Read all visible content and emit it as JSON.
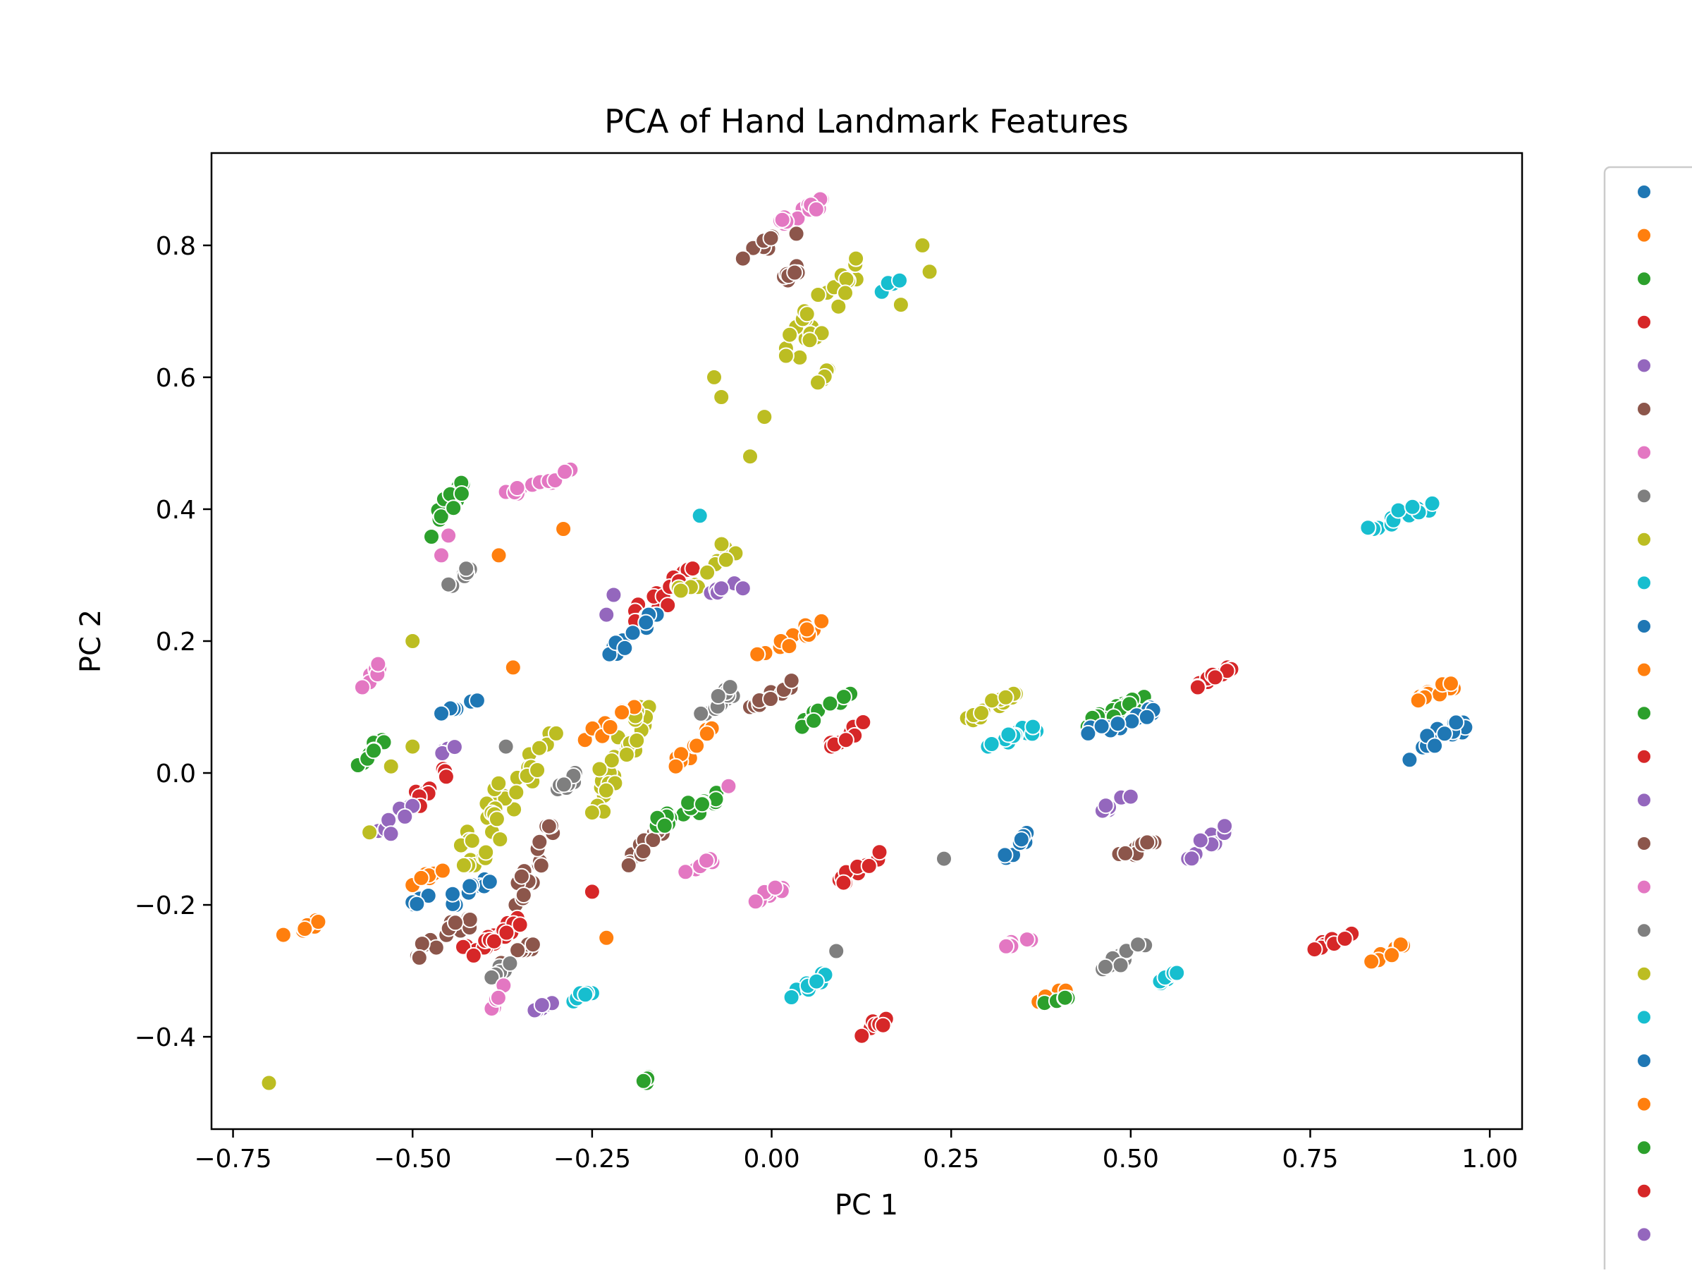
{
  "chart_data": {
    "type": "scatter",
    "title": "PCA of Hand Landmark Features",
    "xlabel": "PC 1",
    "ylabel": "PC 2",
    "xlim": [
      -0.78,
      1.045
    ],
    "ylim": [
      -0.54,
      0.94
    ],
    "xticks": [
      -0.75,
      -0.5,
      -0.25,
      0.0,
      0.25,
      0.5,
      0.75,
      1.0
    ],
    "xtick_labels": [
      "−0.75",
      "−0.50",
      "−0.25",
      "0.00",
      "0.25",
      "0.50",
      "0.75",
      "1.00"
    ],
    "yticks": [
      -0.4,
      -0.2,
      0.0,
      0.2,
      0.4,
      0.6,
      0.8
    ],
    "ytick_labels": [
      "−0.4",
      "−0.2",
      "0.0",
      "0.2",
      "0.4",
      "0.6",
      "0.8"
    ],
    "grid": false,
    "legend_placement": "right, outside plot (cut off)",
    "legend_colors": [
      "#1f77b4",
      "#ff7f0e",
      "#2ca02c",
      "#d62728",
      "#9467bd",
      "#8c564b",
      "#e377c2",
      "#7f7f7f",
      "#bcbd22",
      "#17becf",
      "#1f77b4",
      "#ff7f0e",
      "#2ca02c",
      "#d62728",
      "#9467bd",
      "#8c564b",
      "#e377c2",
      "#7f7f7f",
      "#bcbd22",
      "#17becf",
      "#1f77b4",
      "#ff7f0e",
      "#2ca02c",
      "#d62728",
      "#9467bd"
    ],
    "clusters": [
      {
        "color": "#e377c2",
        "x": [
          0.0,
          0.07
        ],
        "y": [
          0.82,
          0.87
        ],
        "n": 16
      },
      {
        "color": "#8c564b",
        "x": [
          -0.04,
          0.04
        ],
        "y": [
          0.78,
          0.83
        ],
        "n": 8
      },
      {
        "color": "#8c564b",
        "x": [
          -0.01,
          0.04
        ],
        "y": [
          0.73,
          0.77
        ],
        "n": 7
      },
      {
        "color": "#bcbd22",
        "x": [
          0.02,
          0.13
        ],
        "y": [
          0.63,
          0.78
        ],
        "n": 30
      },
      {
        "color": "#bcbd22",
        "x": [
          0.04,
          0.09
        ],
        "y": [
          0.57,
          0.62
        ],
        "n": 5
      },
      {
        "color": "#17becf",
        "x": [
          0.14,
          0.18
        ],
        "y": [
          0.72,
          0.75
        ],
        "n": 4
      },
      {
        "color": "#2ca02c",
        "x": [
          -0.48,
          -0.43
        ],
        "y": [
          0.35,
          0.44
        ],
        "n": 16
      },
      {
        "color": "#e377c2",
        "x": [
          -0.37,
          -0.28
        ],
        "y": [
          0.42,
          0.46
        ],
        "n": 14
      },
      {
        "color": "#7f7f7f",
        "x": [
          -0.45,
          -0.42
        ],
        "y": [
          0.28,
          0.31
        ],
        "n": 7
      },
      {
        "color": "#d62728",
        "x": [
          -0.19,
          -0.11
        ],
        "y": [
          0.23,
          0.31
        ],
        "n": 22
      },
      {
        "color": "#bcbd22",
        "x": [
          -0.13,
          -0.05
        ],
        "y": [
          0.26,
          0.35
        ],
        "n": 12
      },
      {
        "color": "#9467bd",
        "x": [
          -0.1,
          -0.05
        ],
        "y": [
          0.26,
          0.29
        ],
        "n": 5
      },
      {
        "color": "#1f77b4",
        "x": [
          -0.23,
          -0.16
        ],
        "y": [
          0.18,
          0.24
        ],
        "n": 12
      },
      {
        "color": "#ff7f0e",
        "x": [
          -0.02,
          0.07
        ],
        "y": [
          0.18,
          0.23
        ],
        "n": 14
      },
      {
        "color": "#e377c2",
        "x": [
          -0.57,
          -0.54
        ],
        "y": [
          0.13,
          0.17
        ],
        "n": 8
      },
      {
        "color": "#2ca02c",
        "x": [
          -0.58,
          -0.54
        ],
        "y": [
          0.01,
          0.05
        ],
        "n": 10
      },
      {
        "color": "#1f77b4",
        "x": [
          -0.46,
          -0.41
        ],
        "y": [
          0.09,
          0.11
        ],
        "n": 6
      },
      {
        "color": "#bcbd22",
        "x": [
          -0.25,
          -0.17
        ],
        "y": [
          -0.06,
          0.1
        ],
        "n": 34
      },
      {
        "color": "#ff7f0e",
        "x": [
          -0.26,
          -0.19
        ],
        "y": [
          0.05,
          0.1
        ],
        "n": 8
      },
      {
        "color": "#ff7f0e",
        "x": [
          -0.14,
          -0.08
        ],
        "y": [
          0.01,
          0.07
        ],
        "n": 10
      },
      {
        "color": "#7f7f7f",
        "x": [
          -0.1,
          -0.04
        ],
        "y": [
          0.09,
          0.14
        ],
        "n": 12
      },
      {
        "color": "#8c564b",
        "x": [
          -0.03,
          0.04
        ],
        "y": [
          0.1,
          0.14
        ],
        "n": 12
      },
      {
        "color": "#2ca02c",
        "x": [
          0.04,
          0.11
        ],
        "y": [
          0.07,
          0.12
        ],
        "n": 12
      },
      {
        "color": "#d62728",
        "x": [
          0.08,
          0.14
        ],
        "y": [
          0.04,
          0.08
        ],
        "n": 10
      },
      {
        "color": "#bcbd22",
        "x": [
          0.27,
          0.34
        ],
        "y": [
          0.08,
          0.12
        ],
        "n": 14
      },
      {
        "color": "#17becf",
        "x": [
          0.3,
          0.37
        ],
        "y": [
          0.04,
          0.07
        ],
        "n": 14
      },
      {
        "color": "#2ca02c",
        "x": [
          0.44,
          0.52
        ],
        "y": [
          0.07,
          0.12
        ],
        "n": 18
      },
      {
        "color": "#1f77b4",
        "x": [
          0.44,
          0.54
        ],
        "y": [
          0.06,
          0.1
        ],
        "n": 18
      },
      {
        "color": "#d62728",
        "x": [
          0.59,
          0.64
        ],
        "y": [
          0.13,
          0.16
        ],
        "n": 12
      },
      {
        "color": "#17becf",
        "x": [
          0.83,
          0.92
        ],
        "y": [
          0.37,
          0.41
        ],
        "n": 16
      },
      {
        "color": "#ff7f0e",
        "x": [
          0.9,
          0.96
        ],
        "y": [
          0.11,
          0.14
        ],
        "n": 12
      },
      {
        "color": "#1f77b4",
        "x": [
          0.88,
          0.97
        ],
        "y": [
          0.02,
          0.08
        ],
        "n": 16
      },
      {
        "color": "#9467bd",
        "x": [
          -0.46,
          -0.43
        ],
        "y": [
          0.03,
          0.05
        ],
        "n": 5
      },
      {
        "color": "#d62728",
        "x": [
          -0.5,
          -0.45
        ],
        "y": [
          -0.05,
          0.01
        ],
        "n": 10
      },
      {
        "color": "#9467bd",
        "x": [
          -0.55,
          -0.5
        ],
        "y": [
          -0.1,
          -0.05
        ],
        "n": 10
      },
      {
        "color": "#bcbd22",
        "x": [
          -0.44,
          -0.3
        ],
        "y": [
          -0.14,
          0.06
        ],
        "n": 38
      },
      {
        "color": "#7f7f7f",
        "x": [
          -0.31,
          -0.27
        ],
        "y": [
          -0.04,
          0.0
        ],
        "n": 8
      },
      {
        "color": "#ff7f0e",
        "x": [
          -0.5,
          -0.45
        ],
        "y": [
          -0.17,
          -0.14
        ],
        "n": 7
      },
      {
        "color": "#8c564b",
        "x": [
          -0.36,
          -0.3
        ],
        "y": [
          -0.2,
          -0.08
        ],
        "n": 18
      },
      {
        "color": "#1f77b4",
        "x": [
          -0.5,
          -0.47
        ],
        "y": [
          -0.2,
          -0.18
        ],
        "n": 6
      },
      {
        "color": "#1f77b4",
        "x": [
          -0.45,
          -0.39
        ],
        "y": [
          -0.2,
          -0.15
        ],
        "n": 10
      },
      {
        "color": "#8c564b",
        "x": [
          -0.5,
          -0.42
        ],
        "y": [
          -0.28,
          -0.22
        ],
        "n": 22
      },
      {
        "color": "#d62728",
        "x": [
          -0.43,
          -0.35
        ],
        "y": [
          -0.28,
          -0.22
        ],
        "n": 22
      },
      {
        "color": "#8c564b",
        "x": [
          -0.38,
          -0.33
        ],
        "y": [
          -0.29,
          -0.26
        ],
        "n": 8
      },
      {
        "color": "#7f7f7f",
        "x": [
          -0.39,
          -0.35
        ],
        "y": [
          -0.31,
          -0.28
        ],
        "n": 6
      },
      {
        "color": "#e377c2",
        "x": [
          -0.39,
          -0.37
        ],
        "y": [
          -0.36,
          -0.32
        ],
        "n": 6
      },
      {
        "color": "#9467bd",
        "x": [
          -0.33,
          -0.29
        ],
        "y": [
          -0.36,
          -0.34
        ],
        "n": 6
      },
      {
        "color": "#17becf",
        "x": [
          -0.29,
          -0.25
        ],
        "y": [
          -0.35,
          -0.33
        ],
        "n": 6
      },
      {
        "color": "#ff7f0e",
        "x": [
          -0.68,
          -0.62
        ],
        "y": [
          -0.25,
          -0.22
        ],
        "n": 10
      },
      {
        "color": "#8c564b",
        "x": [
          -0.2,
          -0.15
        ],
        "y": [
          -0.14,
          -0.08
        ],
        "n": 18
      },
      {
        "color": "#2ca02c",
        "x": [
          -0.16,
          -0.07
        ],
        "y": [
          -0.08,
          -0.03
        ],
        "n": 20
      },
      {
        "color": "#e377c2",
        "x": [
          -0.12,
          -0.08
        ],
        "y": [
          -0.15,
          -0.13
        ],
        "n": 6
      },
      {
        "color": "#e377c2",
        "x": [
          -0.04,
          0.02
        ],
        "y": [
          -0.2,
          -0.17
        ],
        "n": 10
      },
      {
        "color": "#d62728",
        "x": [
          0.09,
          0.16
        ],
        "y": [
          -0.17,
          -0.12
        ],
        "n": 14
      },
      {
        "color": "#1f77b4",
        "x": [
          0.32,
          0.36
        ],
        "y": [
          -0.13,
          -0.09
        ],
        "n": 8
      },
      {
        "color": "#9467bd",
        "x": [
          0.46,
          0.5
        ],
        "y": [
          -0.06,
          -0.03
        ],
        "n": 8
      },
      {
        "color": "#8c564b",
        "x": [
          0.48,
          0.54
        ],
        "y": [
          -0.13,
          -0.1
        ],
        "n": 10
      },
      {
        "color": "#9467bd",
        "x": [
          0.58,
          0.64
        ],
        "y": [
          -0.13,
          -0.08
        ],
        "n": 12
      },
      {
        "color": "#e377c2",
        "x": [
          0.32,
          0.37
        ],
        "y": [
          -0.27,
          -0.24
        ],
        "n": 6
      },
      {
        "color": "#7f7f7f",
        "x": [
          0.46,
          0.52
        ],
        "y": [
          -0.3,
          -0.26
        ],
        "n": 12
      },
      {
        "color": "#17becf",
        "x": [
          0.53,
          0.57
        ],
        "y": [
          -0.32,
          -0.3
        ],
        "n": 8
      },
      {
        "color": "#17becf",
        "x": [
          0.02,
          0.08
        ],
        "y": [
          -0.34,
          -0.3
        ],
        "n": 10
      },
      {
        "color": "#ff7f0e",
        "x": [
          0.37,
          0.41
        ],
        "y": [
          -0.35,
          -0.33
        ],
        "n": 8
      },
      {
        "color": "#2ca02c",
        "x": [
          0.38,
          0.42
        ],
        "y": [
          -0.35,
          -0.34
        ],
        "n": 6
      },
      {
        "color": "#d62728",
        "x": [
          0.12,
          0.16
        ],
        "y": [
          -0.4,
          -0.37
        ],
        "n": 8
      },
      {
        "color": "#2ca02c",
        "x": [
          -0.18,
          -0.15
        ],
        "y": [
          -0.47,
          -0.45
        ],
        "n": 5
      },
      {
        "color": "#d62728",
        "x": [
          0.75,
          0.81
        ],
        "y": [
          -0.27,
          -0.24
        ],
        "n": 8
      },
      {
        "color": "#ff7f0e",
        "x": [
          0.83,
          0.88
        ],
        "y": [
          -0.29,
          -0.26
        ],
        "n": 10
      }
    ],
    "points": [
      {
        "x": -0.7,
        "y": -0.47,
        "color": "#bcbd22"
      },
      {
        "x": -0.1,
        "y": 0.39,
        "color": "#17becf"
      },
      {
        "x": 0.24,
        "y": -0.13,
        "color": "#7f7f7f"
      },
      {
        "x": 0.09,
        "y": -0.27,
        "color": "#7f7f7f"
      },
      {
        "x": -0.29,
        "y": 0.37,
        "color": "#ff7f0e"
      },
      {
        "x": -0.38,
        "y": 0.33,
        "color": "#ff7f0e"
      },
      {
        "x": -0.45,
        "y": 0.36,
        "color": "#e377c2"
      },
      {
        "x": -0.46,
        "y": 0.33,
        "color": "#e377c2"
      },
      {
        "x": -0.5,
        "y": 0.2,
        "color": "#bcbd22"
      },
      {
        "x": -0.36,
        "y": 0.16,
        "color": "#ff7f0e"
      },
      {
        "x": -0.23,
        "y": -0.25,
        "color": "#ff7f0e"
      },
      {
        "x": -0.25,
        "y": -0.18,
        "color": "#d62728"
      },
      {
        "x": -0.07,
        "y": 0.28,
        "color": "#9467bd"
      },
      {
        "x": -0.04,
        "y": 0.28,
        "color": "#9467bd"
      },
      {
        "x": -0.06,
        "y": -0.02,
        "color": "#e377c2"
      },
      {
        "x": -0.08,
        "y": 0.6,
        "color": "#bcbd22"
      },
      {
        "x": -0.07,
        "y": 0.57,
        "color": "#bcbd22"
      },
      {
        "x": -0.03,
        "y": 0.48,
        "color": "#bcbd22"
      },
      {
        "x": -0.01,
        "y": 0.54,
        "color": "#bcbd22"
      },
      {
        "x": 0.21,
        "y": 0.8,
        "color": "#bcbd22"
      },
      {
        "x": 0.22,
        "y": 0.76,
        "color": "#bcbd22"
      },
      {
        "x": 0.18,
        "y": 0.71,
        "color": "#bcbd22"
      },
      {
        "x": -0.22,
        "y": 0.27,
        "color": "#9467bd"
      },
      {
        "x": -0.23,
        "y": 0.24,
        "color": "#9467bd"
      },
      {
        "x": -0.37,
        "y": 0.04,
        "color": "#7f7f7f"
      },
      {
        "x": -0.5,
        "y": 0.04,
        "color": "#bcbd22"
      },
      {
        "x": -0.56,
        "y": -0.09,
        "color": "#bcbd22"
      },
      {
        "x": -0.53,
        "y": 0.01,
        "color": "#bcbd22"
      }
    ]
  }
}
